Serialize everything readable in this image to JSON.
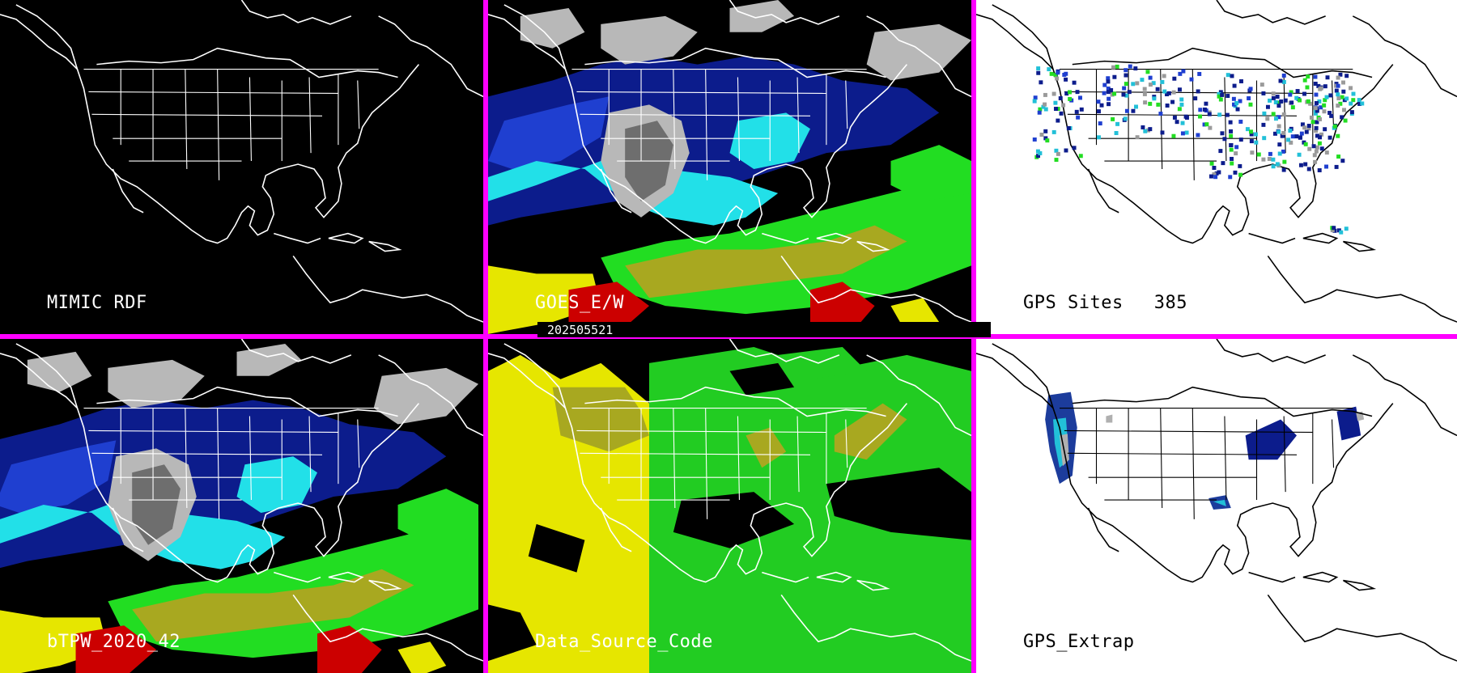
{
  "panels": [
    {
      "label": "MIMIC RDF"
    },
    {
      "label": "GOES_E/W"
    },
    {
      "label": "GPS Sites",
      "count": "385"
    },
    {
      "label": "bTPW_2020_42"
    },
    {
      "label": "Data_Source_Code"
    },
    {
      "label": "GPS_Extrap"
    }
  ],
  "timestamp": "202505521",
  "colors": {
    "divider": "#ff00ff",
    "coast_dark": "#ffffff",
    "coast_light": "#000000",
    "tpw_navy": "#0c1c8c",
    "tpw_blue": "#1f3fd0",
    "tpw_cyan": "#22e0e8",
    "tpw_green": "#22dd22",
    "tpw_olive": "#a8a820",
    "tpw_yellow": "#e6e600",
    "tpw_red": "#cc0000",
    "dry_gray": "#b8b8b8"
  }
}
